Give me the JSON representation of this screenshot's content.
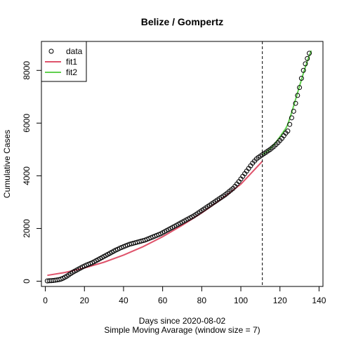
{
  "chart_data": {
    "type": "scatter",
    "title": "Belize / Gompertz",
    "xlabel": "Days since 2020-08-02",
    "subtitle": "Simple Moving Avarage (window size = 7)",
    "ylabel": "Cumulative Cases",
    "xlim": [
      -2,
      142
    ],
    "ylim": [
      -200,
      9100
    ],
    "xticks": [
      0,
      20,
      40,
      60,
      80,
      100,
      120,
      140
    ],
    "yticks": [
      0,
      2000,
      4000,
      6000,
      8000
    ],
    "xtick_labels": [
      "0",
      "20",
      "40",
      "60",
      "80",
      "100",
      "120",
      "140"
    ],
    "ytick_labels": [
      "0",
      "2000",
      "4000",
      "6000",
      "8000"
    ],
    "vline_x": 111,
    "legend": {
      "position": "top-left",
      "entries": [
        "data",
        "fit1",
        "fit2"
      ]
    },
    "series": [
      {
        "name": "data",
        "color": "#000000",
        "marker": "open-circle",
        "x": [
          1,
          2,
          3,
          4,
          5,
          6,
          7,
          8,
          9,
          10,
          11,
          12,
          13,
          14,
          15,
          16,
          17,
          18,
          19,
          20,
          21,
          22,
          23,
          24,
          25,
          26,
          27,
          28,
          29,
          30,
          31,
          32,
          33,
          34,
          35,
          36,
          37,
          38,
          39,
          40,
          41,
          42,
          43,
          44,
          45,
          46,
          47,
          48,
          49,
          50,
          51,
          52,
          53,
          54,
          55,
          56,
          57,
          58,
          59,
          60,
          61,
          62,
          63,
          64,
          65,
          66,
          67,
          68,
          69,
          70,
          71,
          72,
          73,
          74,
          75,
          76,
          77,
          78,
          79,
          80,
          81,
          82,
          83,
          84,
          85,
          86,
          87,
          88,
          89,
          90,
          91,
          92,
          93,
          94,
          95,
          96,
          97,
          98,
          99,
          100,
          101,
          102,
          103,
          104,
          105,
          106,
          107,
          108,
          109,
          110,
          111,
          112,
          113,
          114,
          115,
          116,
          117,
          118,
          119,
          120,
          121,
          122,
          123,
          124,
          125,
          126,
          127,
          128,
          129,
          130,
          131,
          132,
          133,
          134,
          135
        ],
        "y": [
          10,
          15,
          20,
          25,
          35,
          45,
          60,
          80,
          110,
          150,
          190,
          240,
          290,
          340,
          380,
          420,
          460,
          500,
          540,
          575,
          610,
          640,
          670,
          700,
          740,
          780,
          820,
          860,
          900,
          940,
          980,
          1020,
          1060,
          1100,
          1140,
          1180,
          1210,
          1250,
          1280,
          1310,
          1340,
          1370,
          1400,
          1420,
          1440,
          1460,
          1480,
          1500,
          1520,
          1540,
          1560,
          1590,
          1620,
          1650,
          1680,
          1710,
          1740,
          1770,
          1800,
          1840,
          1880,
          1920,
          1960,
          2000,
          2040,
          2080,
          2120,
          2160,
          2200,
          2240,
          2280,
          2320,
          2360,
          2400,
          2440,
          2480,
          2530,
          2580,
          2630,
          2680,
          2730,
          2780,
          2830,
          2880,
          2930,
          2980,
          3030,
          3080,
          3130,
          3180,
          3230,
          3280,
          3340,
          3400,
          3460,
          3520,
          3600,
          3690,
          3780,
          3880,
          3980,
          4080,
          4180,
          4280,
          4380,
          4480,
          4560,
          4640,
          4700,
          4750,
          4800,
          4850,
          4900,
          4950,
          5000,
          5060,
          5120,
          5190,
          5260,
          5340,
          5420,
          5520,
          5620,
          5700,
          5950,
          6200,
          6450,
          6750,
          7050,
          7350,
          7700,
          8000,
          8250,
          8450,
          8650
        ]
      },
      {
        "name": "fit1",
        "color": "#df536b",
        "x": [
          1,
          10,
          20,
          30,
          40,
          50,
          60,
          70,
          80,
          90,
          100,
          111
        ],
        "y": [
          220,
          330,
          500,
          720,
          990,
          1310,
          1690,
          2120,
          2590,
          3110,
          3680,
          4550
        ]
      },
      {
        "name": "fit2",
        "color": "#61d04f",
        "x": [
          111,
          114,
          117,
          120,
          123,
          124,
          126,
          128,
          130,
          132,
          134,
          136
        ],
        "y": [
          4800,
          4950,
          5180,
          5480,
          5800,
          5950,
          6400,
          6900,
          7400,
          7900,
          8350,
          8750
        ]
      }
    ]
  }
}
